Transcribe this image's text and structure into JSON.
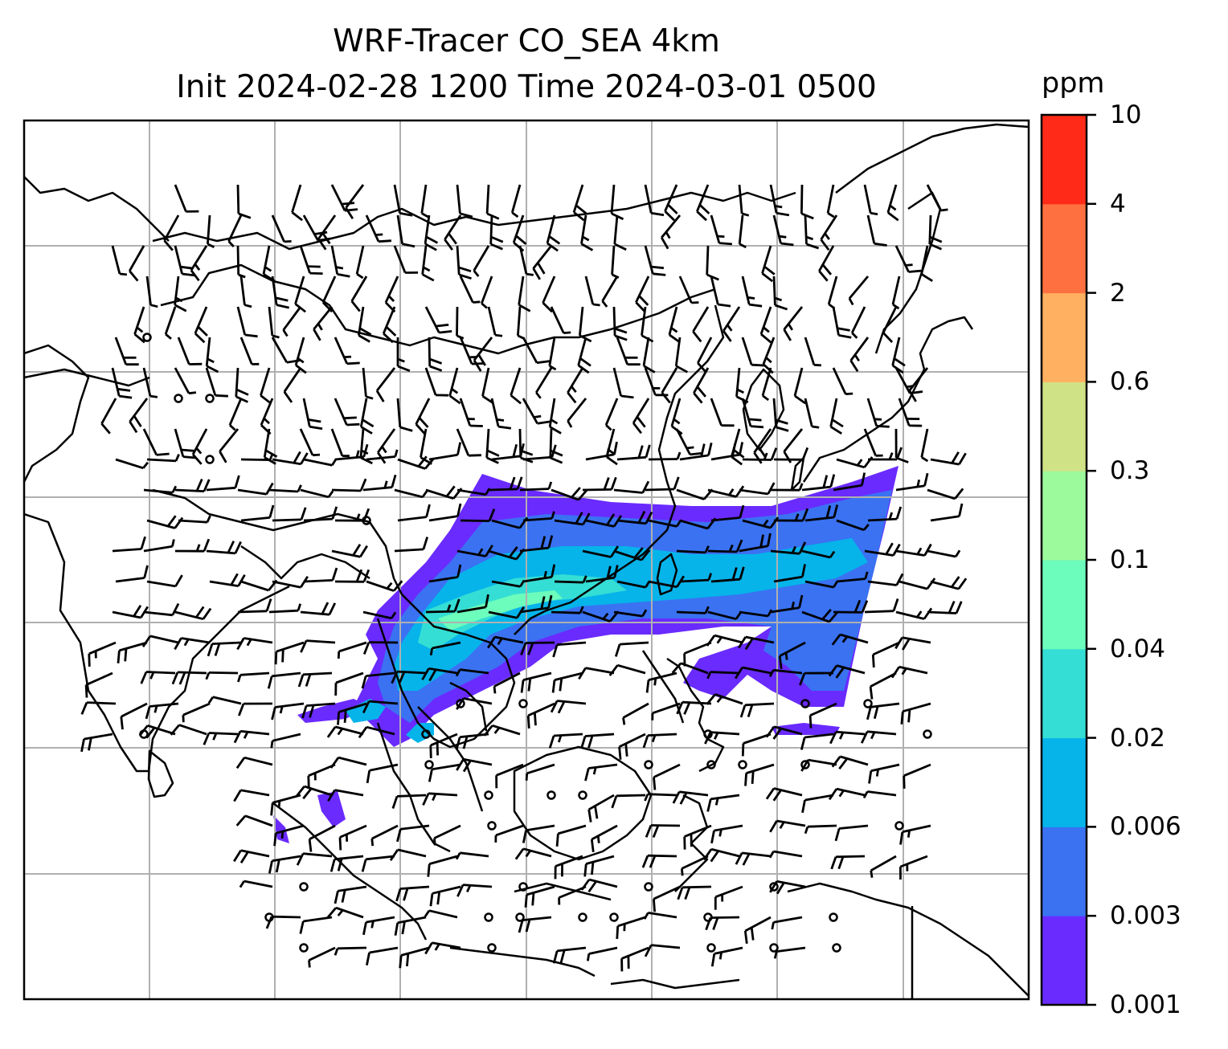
{
  "title": {
    "line1": "WRF-Tracer CO_SEA 4km",
    "line2": "Init 2024-02-28 1200 Time 2024-03-01 0500"
  },
  "colorbar": {
    "unit": "ppm",
    "levels": [
      "0.001",
      "0.003",
      "0.006",
      "0.02",
      "0.04",
      "0.1",
      "0.3",
      "0.6",
      "2",
      "4",
      "10"
    ],
    "colors": [
      "#6a2bff",
      "#3a72f2",
      "#06b4ea",
      "#34ded4",
      "#6cfcbc",
      "#9cfa9c",
      "#d0e286",
      "#ffb060",
      "#ff7040",
      "#ff2a18"
    ]
  },
  "map": {
    "projection": "regular lat-lon grid",
    "gridlines": true,
    "coastlines": "black",
    "wind_barbs": "black",
    "plume_field": "CO tracer concentration over South-East Asia extending east across Taiwan to the western Pacific"
  }
}
